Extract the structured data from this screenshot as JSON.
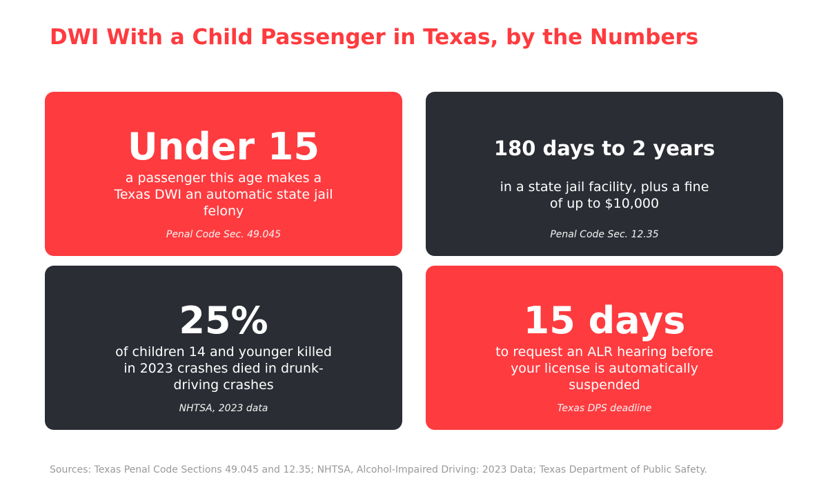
{
  "title": "DWI With a Child Passenger in Texas, by the Numbers",
  "colors": {
    "accent": "#fe3b3f",
    "dark": "#2a2d34",
    "text_on_card": "#ffffff",
    "footer_text": "#999999"
  },
  "cards": [
    {
      "stat": "Under 15",
      "description": "a passenger this age makes a Texas DWI an automatic state jail felony",
      "source": "Penal Code Sec. 49.045",
      "color": "#fe3b3f"
    },
    {
      "stat": "180 days to 2 years",
      "description": "in a state jail facility, plus a fine of up to $10,000",
      "source": "Penal Code Sec. 12.35",
      "color": "#2a2d34"
    },
    {
      "stat": "25%",
      "description": "of children 14 and younger killed in 2023 crashes died in drunk-driving crashes",
      "source": "NHTSA, 2023 data",
      "color": "#2a2d34"
    },
    {
      "stat": "15 days",
      "description": "to request an ALR hearing before your license is automatically suspended",
      "source": "Texas DPS deadline",
      "color": "#fe3b3f"
    }
  ],
  "footer": "Sources: Texas Penal Code Sections 49.045 and 12.35; NHTSA, Alcohol-Impaired Driving: 2023 Data; Texas Department of Public Safety."
}
